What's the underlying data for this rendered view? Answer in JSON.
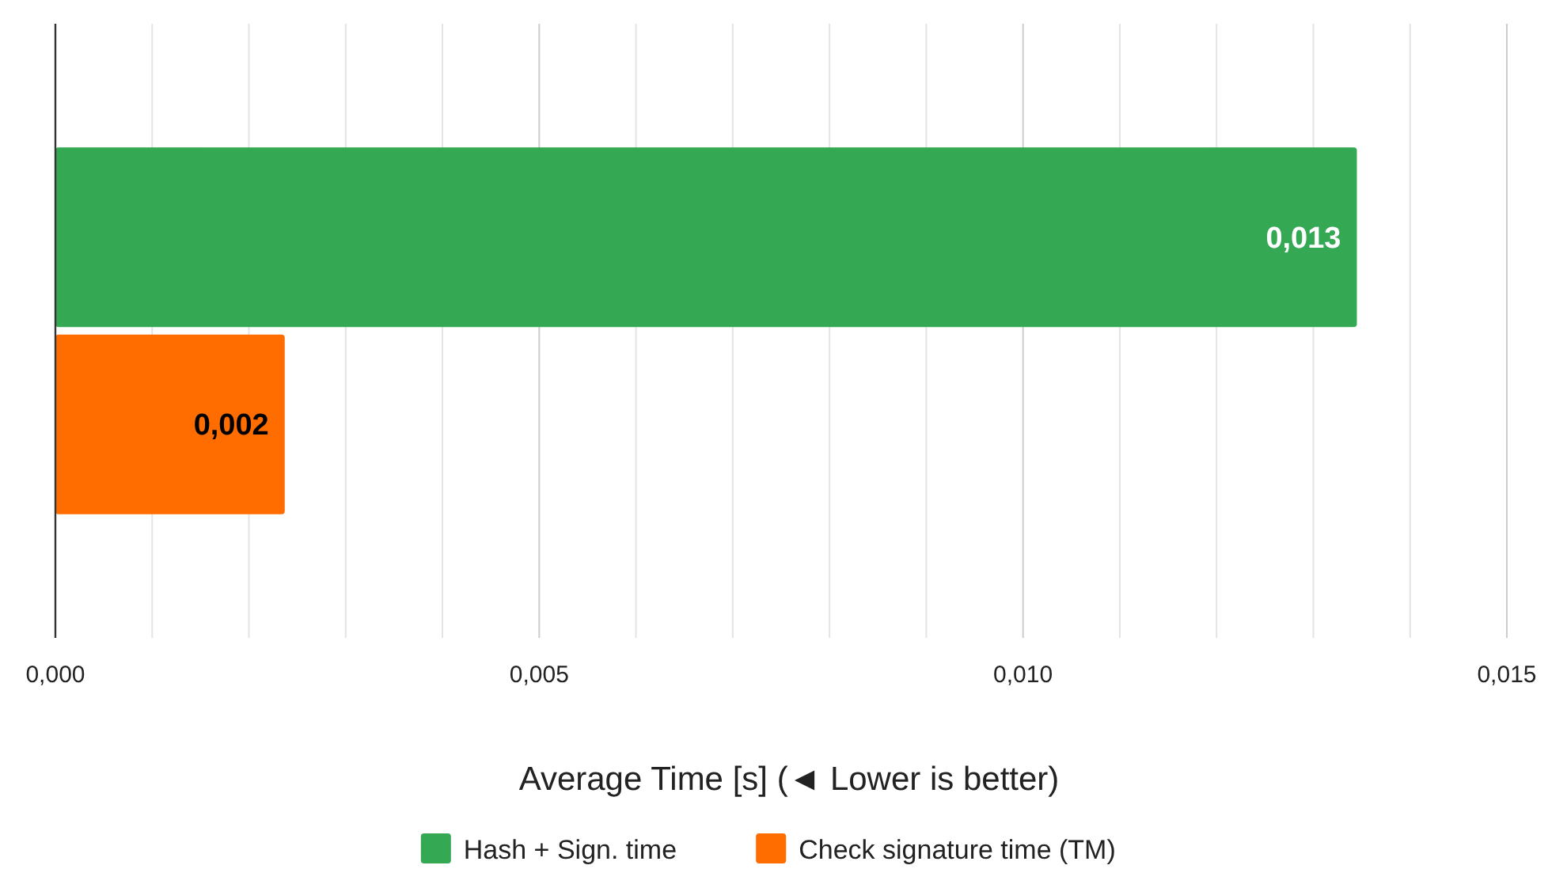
{
  "chart_data": {
    "type": "bar",
    "orientation": "horizontal",
    "xlabel": "Average Time [s] (◄ Lower is better)",
    "categories": [
      null
    ],
    "series": [
      {
        "name": "Hash + Sign. time",
        "color": "#34a853",
        "values": [
          0.01345
        ],
        "value_labels": [
          "0,013"
        ]
      },
      {
        "name": "Check signature time (TM)",
        "color": "#ff6d01",
        "values": [
          0.00237
        ],
        "value_labels": [
          "0,002"
        ]
      }
    ],
    "xlim": [
      0,
      0.015
    ],
    "xticks": [
      {
        "value": 0,
        "label": "0,000"
      },
      {
        "value": 0.001,
        "label": null
      },
      {
        "value": 0.002,
        "label": null
      },
      {
        "value": 0.003,
        "label": null
      },
      {
        "value": 0.004,
        "label": null
      },
      {
        "value": 0.005,
        "label": "0,005"
      },
      {
        "value": 0.006,
        "label": null
      },
      {
        "value": 0.007,
        "label": null
      },
      {
        "value": 0.008,
        "label": null
      },
      {
        "value": 0.009,
        "label": null
      },
      {
        "value": 0.01,
        "label": "0,010"
      },
      {
        "value": 0.011,
        "label": null
      },
      {
        "value": 0.012,
        "label": null
      },
      {
        "value": 0.013,
        "label": null
      },
      {
        "value": 0.014,
        "label": null
      },
      {
        "value": 0.015,
        "label": "0,015"
      }
    ],
    "grid": "x",
    "legend": "bottom"
  }
}
